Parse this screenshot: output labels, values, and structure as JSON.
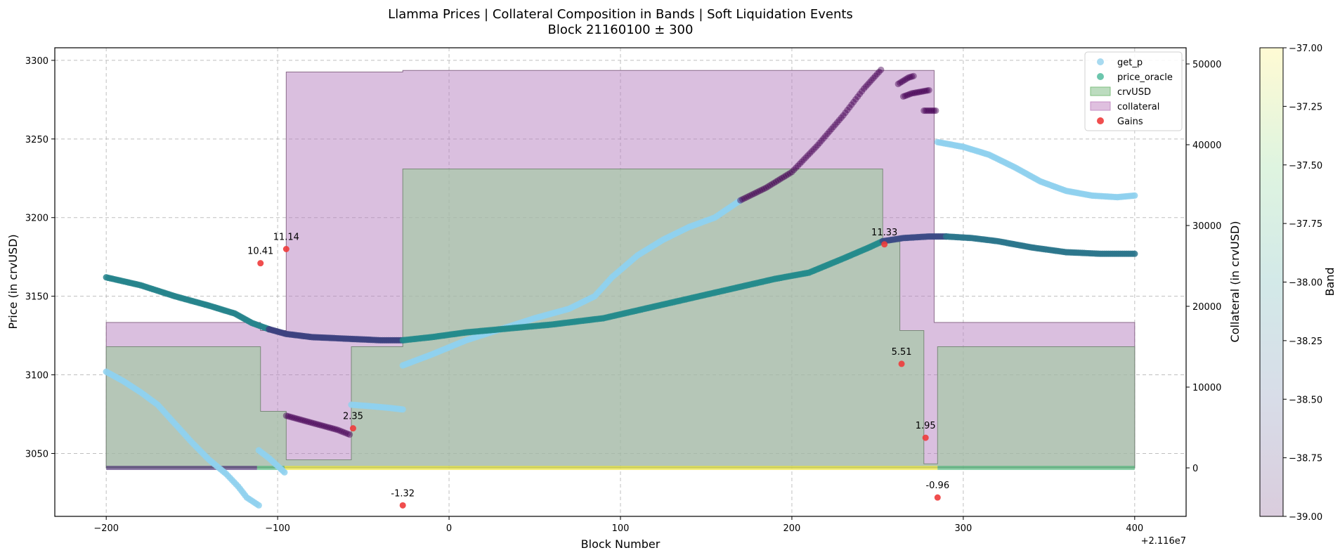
{
  "chart_data": {
    "type": "scatter",
    "title_line1": "Llamma Prices | Collateral Composition in Bands | Soft Liquidation Events",
    "title_line2": "Block 21160100 ± 300",
    "xlabel": "Block Number",
    "ylabel": "Price (in crvUSD)",
    "ylabel_right": "Collateral (in crvUSD)",
    "colorbar_label": "Band",
    "x_offset_label": "+2.116e7",
    "xlim": [
      -230,
      430
    ],
    "ylim": [
      3010,
      3308
    ],
    "ylim_right": [
      -6000,
      52000
    ],
    "colorbar_range": [
      -39.0,
      -37.0
    ],
    "x_ticks": [
      -200,
      -100,
      0,
      100,
      200,
      300,
      400
    ],
    "x_tick_labels": [
      "−200",
      "−100",
      "0",
      "100",
      "200",
      "300",
      "400"
    ],
    "y_ticks": [
      3050,
      3100,
      3150,
      3200,
      3250,
      3300
    ],
    "y_tick_labels": [
      "3050",
      "3100",
      "3150",
      "3200",
      "3250",
      "3300"
    ],
    "y_right_ticks": [
      0,
      10000,
      20000,
      30000,
      40000,
      50000
    ],
    "y_right_tick_labels": [
      "0",
      "10000",
      "20000",
      "30000",
      "40000",
      "50000"
    ],
    "colorbar_ticks": [
      -37.0,
      -37.25,
      -37.5,
      -37.75,
      -38.0,
      -38.25,
      -38.5,
      -38.75,
      -39.0
    ],
    "colorbar_tick_labels": [
      "−37.00",
      "−37.25",
      "−37.50",
      "−37.75",
      "−38.00",
      "−38.25",
      "−38.50",
      "−38.75",
      "−39.00"
    ],
    "grid": true,
    "legend_position": "top-right",
    "legend": [
      {
        "label": "get_p",
        "kind": "dot",
        "color": "#9fd6ee"
      },
      {
        "label": "price_oracle",
        "kind": "dot",
        "color": "#5cc0a4"
      },
      {
        "label": "crvUSD",
        "kind": "patch",
        "color": "#bcdcbf",
        "edge": "#7fbf7f"
      },
      {
        "label": "collateral",
        "kind": "patch",
        "color": "#dfc0df",
        "edge": "#c48fc4"
      },
      {
        "label": "Gains",
        "kind": "dot",
        "color": "#ee3b3b"
      }
    ],
    "crvusd_area": [
      [
        -200,
        15000
      ],
      [
        -110,
        15000
      ],
      [
        -110,
        7000
      ],
      [
        -95,
        7000
      ],
      [
        -95,
        1000
      ],
      [
        -57,
        1000
      ],
      [
        -57,
        15000
      ],
      [
        -27,
        15000
      ],
      [
        -27,
        37000
      ],
      [
        253,
        37000
      ],
      [
        253,
        28000
      ],
      [
        263,
        28000
      ],
      [
        263,
        17000
      ],
      [
        277,
        17000
      ],
      [
        277,
        500
      ],
      [
        285,
        500
      ],
      [
        285,
        15000
      ],
      [
        400,
        15000
      ]
    ],
    "collateral_area": [
      [
        -200,
        18000
      ],
      [
        -110,
        18000
      ],
      [
        -110,
        17000
      ],
      [
        -95,
        17000
      ],
      [
        -95,
        49000
      ],
      [
        -27,
        49000
      ],
      [
        -27,
        49200
      ],
      [
        283,
        49200
      ],
      [
        283,
        18000
      ],
      [
        400,
        18000
      ]
    ],
    "get_p_segments": [
      {
        "band": -37.0,
        "points": [
          [
            -200,
            3102
          ],
          [
            -190,
            3096
          ],
          [
            -180,
            3089
          ],
          [
            -170,
            3081
          ],
          [
            -160,
            3069
          ],
          [
            -150,
            3057
          ],
          [
            -140,
            3046
          ],
          [
            -130,
            3037
          ],
          [
            -123,
            3029
          ],
          [
            -118,
            3022
          ],
          [
            -111,
            3017
          ]
        ]
      },
      {
        "band": -37.0,
        "points": [
          [
            -111,
            3052
          ],
          [
            -105,
            3047
          ],
          [
            -100,
            3042
          ],
          [
            -96,
            3038
          ]
        ]
      },
      {
        "band": -39.0,
        "points": [
          [
            -95,
            3074
          ],
          [
            -85,
            3071
          ],
          [
            -75,
            3068
          ],
          [
            -65,
            3065
          ],
          [
            -58,
            3062
          ]
        ]
      },
      {
        "band": -37.0,
        "points": [
          [
            -57,
            3081
          ],
          [
            -45,
            3080
          ],
          [
            -35,
            3079
          ],
          [
            -27,
            3078
          ]
        ]
      },
      {
        "band": -37.0,
        "points": [
          [
            -27,
            3106
          ],
          [
            -10,
            3113
          ],
          [
            10,
            3122
          ],
          [
            30,
            3129
          ],
          [
            50,
            3136
          ],
          [
            70,
            3142
          ],
          [
            85,
            3150
          ],
          [
            95,
            3162
          ],
          [
            110,
            3176
          ],
          [
            125,
            3186
          ],
          [
            140,
            3194
          ],
          [
            155,
            3200
          ],
          [
            170,
            3211
          ]
        ]
      },
      {
        "band": -39.0,
        "points": [
          [
            170,
            3211
          ],
          [
            185,
            3219
          ],
          [
            200,
            3229
          ],
          [
            215,
            3246
          ],
          [
            230,
            3265
          ],
          [
            242,
            3282
          ],
          [
            252,
            3294
          ]
        ]
      },
      {
        "band": -39.0,
        "points": [
          [
            262,
            3285
          ],
          [
            265,
            3287
          ],
          [
            268,
            3289
          ],
          [
            271,
            3290
          ]
        ]
      },
      {
        "band": -39.0,
        "points": [
          [
            265,
            3277
          ],
          [
            270,
            3279
          ],
          [
            275,
            3280
          ],
          [
            280,
            3281
          ]
        ]
      },
      {
        "band": -39.0,
        "points": [
          [
            277,
            3268
          ],
          [
            280,
            3268
          ],
          [
            284,
            3268
          ]
        ]
      },
      {
        "band": -37.0,
        "points": [
          [
            285,
            3248
          ],
          [
            300,
            3245
          ],
          [
            315,
            3240
          ],
          [
            330,
            3232
          ],
          [
            345,
            3223
          ],
          [
            360,
            3217
          ],
          [
            375,
            3214
          ],
          [
            390,
            3213
          ],
          [
            400,
            3214
          ]
        ]
      }
    ],
    "price_oracle_segments": [
      {
        "band": -38.1,
        "points": [
          [
            -200,
            3162
          ],
          [
            -180,
            3157
          ],
          [
            -160,
            3150
          ],
          [
            -140,
            3144
          ],
          [
            -125,
            3139
          ],
          [
            -115,
            3133
          ],
          [
            -105,
            3129
          ]
        ]
      },
      {
        "band": -39.0,
        "points": [
          [
            -105,
            3129
          ],
          [
            -95,
            3126
          ],
          [
            -80,
            3124
          ],
          [
            -60,
            3123
          ],
          [
            -40,
            3122
          ],
          [
            -27,
            3122
          ]
        ]
      },
      {
        "band": -38.0,
        "points": [
          [
            -27,
            3122
          ],
          [
            -10,
            3124
          ],
          [
            10,
            3127
          ],
          [
            30,
            3129
          ],
          [
            60,
            3132
          ],
          [
            90,
            3136
          ],
          [
            110,
            3141
          ],
          [
            130,
            3146
          ],
          [
            150,
            3151
          ],
          [
            170,
            3156
          ],
          [
            190,
            3161
          ],
          [
            210,
            3165
          ],
          [
            230,
            3174
          ],
          [
            245,
            3181
          ],
          [
            253,
            3185
          ]
        ]
      },
      {
        "band": -38.9,
        "points": [
          [
            253,
            3185
          ],
          [
            265,
            3187
          ],
          [
            280,
            3188
          ],
          [
            290,
            3188
          ]
        ]
      },
      {
        "band": -38.3,
        "points": [
          [
            290,
            3188
          ],
          [
            305,
            3187
          ],
          [
            320,
            3185
          ],
          [
            340,
            3181
          ],
          [
            360,
            3178
          ],
          [
            380,
            3177
          ],
          [
            400,
            3177
          ]
        ]
      }
    ],
    "band_markers_collateral": [
      {
        "band": -38.8,
        "x_range": [
          -200,
          -112
        ]
      },
      {
        "band": -37.7,
        "x_range": [
          -112,
          -96
        ]
      },
      {
        "band": -37.05,
        "x_range": [
          -96,
          285
        ]
      },
      {
        "band": -37.7,
        "x_range": [
          285,
          400
        ]
      }
    ],
    "gains": [
      {
        "x": -110,
        "y": 3171,
        "label": "10.41"
      },
      {
        "x": -95,
        "y": 3180,
        "label": "11.14"
      },
      {
        "x": -56,
        "y": 3066,
        "label": "2.35"
      },
      {
        "x": -27,
        "y": 3017,
        "label": "-1.32"
      },
      {
        "x": 254,
        "y": 3183,
        "label": "11.33"
      },
      {
        "x": 264,
        "y": 3107,
        "label": "5.51"
      },
      {
        "x": 278,
        "y": 3060,
        "label": "1.95"
      },
      {
        "x": 285,
        "y": 3022,
        "label": "-0.96"
      }
    ]
  }
}
